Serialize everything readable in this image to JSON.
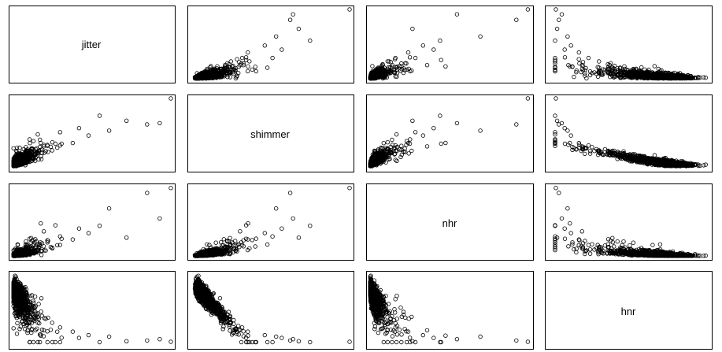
{
  "chart_data": {
    "type": "scatter-matrix",
    "variables": [
      "jitter",
      "shimmer",
      "nhr",
      "hnr"
    ],
    "diagonal_labels": [
      "jitter",
      "shimmer",
      "nhr",
      "hnr"
    ],
    "axes_shown": false,
    "ranges": {
      "jitter": [
        0.0,
        0.1
      ],
      "shimmer": [
        0.0,
        0.28
      ],
      "nhr": [
        0.0,
        0.75
      ],
      "hnr": [
        0.0,
        38.0
      ]
    },
    "sample_points": [
      {
        "jitter": 0.1,
        "shimmer": 0.28,
        "nhr": 0.744,
        "hnr": 1.7
      },
      {
        "jitter": 0.093,
        "shimmer": 0.18,
        "nhr": 0.41,
        "hnr": 3.1
      },
      {
        "jitter": 0.085,
        "shimmer": 0.175,
        "nhr": 0.69,
        "hnr": 2.4
      },
      {
        "jitter": 0.072,
        "shimmer": 0.19,
        "nhr": 0.2,
        "hnr": 2.0
      },
      {
        "jitter": 0.061,
        "shimmer": 0.15,
        "nhr": 0.52,
        "hnr": 4.5
      },
      {
        "jitter": 0.055,
        "shimmer": 0.21,
        "nhr": 0.33,
        "hnr": 1.5
      },
      {
        "jitter": 0.048,
        "shimmer": 0.13,
        "nhr": 0.25,
        "hnr": 5.3
      },
      {
        "jitter": 0.042,
        "shimmer": 0.16,
        "nhr": 0.3,
        "hnr": 3.8
      },
      {
        "jitter": 0.038,
        "shimmer": 0.1,
        "nhr": 0.18,
        "hnr": 7.2
      },
      {
        "jitter": 0.03,
        "shimmer": 0.09,
        "nhr": 0.12,
        "hnr": 9.5
      },
      {
        "jitter": 0.025,
        "shimmer": 0.07,
        "nhr": 0.09,
        "hnr": 12.0
      },
      {
        "jitter": 0.02,
        "shimmer": 0.06,
        "nhr": 0.06,
        "hnr": 14.5
      },
      {
        "jitter": 0.015,
        "shimmer": 0.045,
        "nhr": 0.04,
        "hnr": 17.0
      },
      {
        "jitter": 0.01,
        "shimmer": 0.03,
        "nhr": 0.02,
        "hnr": 20.5
      },
      {
        "jitter": 0.006,
        "shimmer": 0.02,
        "nhr": 0.01,
        "hnr": 25.0
      },
      {
        "jitter": 0.002,
        "shimmer": 0.01,
        "nhr": 0.001,
        "hnr": 37.0
      }
    ]
  }
}
